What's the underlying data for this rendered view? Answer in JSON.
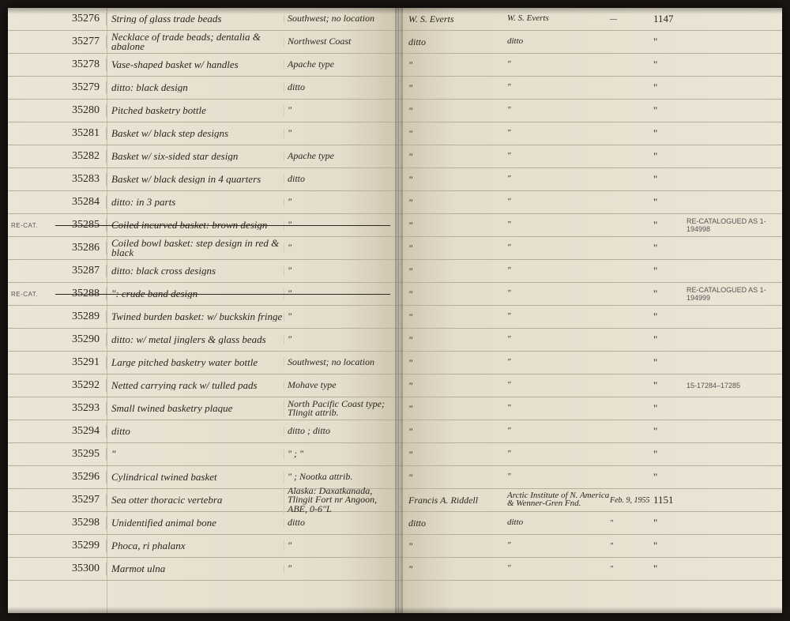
{
  "leftRows": [
    {
      "recat": "",
      "id": "35276",
      "desc": "String of glass trade beads",
      "loc": "Southwest; no location",
      "struck": false
    },
    {
      "recat": "",
      "id": "35277",
      "desc": "Necklace of trade beads; dentalia & abalone",
      "loc": "Northwest Coast",
      "struck": false
    },
    {
      "recat": "",
      "id": "35278",
      "desc": "Vase-shaped basket w/ handles",
      "loc": "Apache type",
      "struck": false
    },
    {
      "recat": "",
      "id": "35279",
      "desc": "ditto: black design",
      "loc": "ditto",
      "struck": false
    },
    {
      "recat": "",
      "id": "35280",
      "desc": "Pitched basketry bottle",
      "loc": "\"",
      "struck": false
    },
    {
      "recat": "",
      "id": "35281",
      "desc": "Basket w/ black step designs",
      "loc": "\"",
      "struck": false
    },
    {
      "recat": "",
      "id": "35282",
      "desc": "Basket w/ six-sided star design",
      "loc": "Apache type",
      "struck": false
    },
    {
      "recat": "",
      "id": "35283",
      "desc": "Basket w/ black design in 4 quarters",
      "loc": "ditto",
      "struck": false
    },
    {
      "recat": "",
      "id": "35284",
      "desc": "ditto: in 3 parts",
      "loc": "\"",
      "struck": false
    },
    {
      "recat": "RE-CAT.",
      "id": "35285",
      "desc": "Coiled incurved basket: brown design",
      "loc": "\"",
      "struck": true
    },
    {
      "recat": "",
      "id": "35286",
      "desc": "Coiled bowl basket: step design in red & black",
      "loc": "\"",
      "struck": false
    },
    {
      "recat": "",
      "id": "35287",
      "desc": "ditto: black cross designs",
      "loc": "\"",
      "struck": false
    },
    {
      "recat": "RE-CAT.",
      "id": "35288",
      "desc": "\": crude band design",
      "loc": "\"",
      "struck": true
    },
    {
      "recat": "",
      "id": "35289",
      "desc": "Twined burden basket: w/ buckskin fringe",
      "loc": "\"",
      "struck": false
    },
    {
      "recat": "",
      "id": "35290",
      "desc": "ditto: w/ metal jinglers & glass beads",
      "loc": "\"",
      "struck": false
    },
    {
      "recat": "",
      "id": "35291",
      "desc": "Large pitched basketry water bottle",
      "loc": "Southwest; no location",
      "struck": false
    },
    {
      "recat": "",
      "id": "35292",
      "desc": "Netted carrying rack w/ tulled pads",
      "loc": "Mohave type",
      "struck": false
    },
    {
      "recat": "",
      "id": "35293",
      "desc": "Small twined basketry plaque",
      "loc": "North Pacific Coast type; Tlingit attrib.",
      "struck": false
    },
    {
      "recat": "",
      "id": "35294",
      "desc": "ditto",
      "loc": "ditto ; ditto",
      "struck": false
    },
    {
      "recat": "",
      "id": "35295",
      "desc": "\"",
      "loc": "\" ; \"",
      "struck": false
    },
    {
      "recat": "",
      "id": "35296",
      "desc": "Cylindrical twined basket",
      "loc": "\" ; Nootka attrib.",
      "struck": false
    },
    {
      "recat": "",
      "id": "35297",
      "desc": "Sea otter thoracic vertebra",
      "loc": "Alaska: Daxatkanada, Tlingit Fort nr Angoon, ABE, 0-6\"L",
      "struck": false
    },
    {
      "recat": "",
      "id": "35298",
      "desc": "Unidentified animal bone",
      "loc": "ditto",
      "struck": false
    },
    {
      "recat": "",
      "id": "35299",
      "desc": "Phoca, ri phalanx",
      "loc": "\"",
      "struck": false
    },
    {
      "recat": "",
      "id": "35300",
      "desc": "Marmot ulna",
      "loc": "\"",
      "struck": false
    }
  ],
  "rightRows": [
    {
      "c1": "W. S. Everts",
      "c2": "W. S. Everts",
      "c3": "—",
      "c4": "1147",
      "c5": ""
    },
    {
      "c1": "ditto",
      "c2": "ditto",
      "c3": "",
      "c4": "\"",
      "c5": ""
    },
    {
      "c1": "\"",
      "c2": "\"",
      "c3": "",
      "c4": "\"",
      "c5": ""
    },
    {
      "c1": "\"",
      "c2": "\"",
      "c3": "",
      "c4": "\"",
      "c5": ""
    },
    {
      "c1": "\"",
      "c2": "\"",
      "c3": "",
      "c4": "\"",
      "c5": ""
    },
    {
      "c1": "\"",
      "c2": "\"",
      "c3": "",
      "c4": "\"",
      "c5": ""
    },
    {
      "c1": "\"",
      "c2": "\"",
      "c3": "",
      "c4": "\"",
      "c5": ""
    },
    {
      "c1": "\"",
      "c2": "\"",
      "c3": "",
      "c4": "\"",
      "c5": ""
    },
    {
      "c1": "\"",
      "c2": "\"",
      "c3": "",
      "c4": "\"",
      "c5": ""
    },
    {
      "c1": "\"",
      "c2": "\"",
      "c3": "",
      "c4": "\"",
      "c5": "RE-CATALOGUED AS 1-194998"
    },
    {
      "c1": "\"",
      "c2": "\"",
      "c3": "",
      "c4": "\"",
      "c5": ""
    },
    {
      "c1": "\"",
      "c2": "\"",
      "c3": "",
      "c4": "\"",
      "c5": ""
    },
    {
      "c1": "\"",
      "c2": "\"",
      "c3": "",
      "c4": "\"",
      "c5": "RE-CATALOGUED AS 1-194999"
    },
    {
      "c1": "\"",
      "c2": "\"",
      "c3": "",
      "c4": "\"",
      "c5": ""
    },
    {
      "c1": "\"",
      "c2": "\"",
      "c3": "",
      "c4": "\"",
      "c5": ""
    },
    {
      "c1": "\"",
      "c2": "\"",
      "c3": "",
      "c4": "\"",
      "c5": ""
    },
    {
      "c1": "\"",
      "c2": "\"",
      "c3": "",
      "c4": "\"",
      "c5": "15-17284–17285"
    },
    {
      "c1": "\"",
      "c2": "\"",
      "c3": "",
      "c4": "\"",
      "c5": ""
    },
    {
      "c1": "\"",
      "c2": "\"",
      "c3": "",
      "c4": "\"",
      "c5": ""
    },
    {
      "c1": "\"",
      "c2": "\"",
      "c3": "",
      "c4": "\"",
      "c5": ""
    },
    {
      "c1": "\"",
      "c2": "\"",
      "c3": "",
      "c4": "\"",
      "c5": ""
    },
    {
      "c1": "Francis A. Riddell",
      "c2": "Arctic Institute of N. America & Wenner-Gren Fnd.",
      "c3": "Feb. 9, 1955",
      "c4": "1151",
      "c5": ""
    },
    {
      "c1": "ditto",
      "c2": "ditto",
      "c3": "\"",
      "c4": "\"",
      "c5": ""
    },
    {
      "c1": "\"",
      "c2": "\"",
      "c3": "\"",
      "c4": "\"",
      "c5": ""
    },
    {
      "c1": "\"",
      "c2": "\"",
      "c3": "\"",
      "c4": "\"",
      "c5": ""
    }
  ]
}
